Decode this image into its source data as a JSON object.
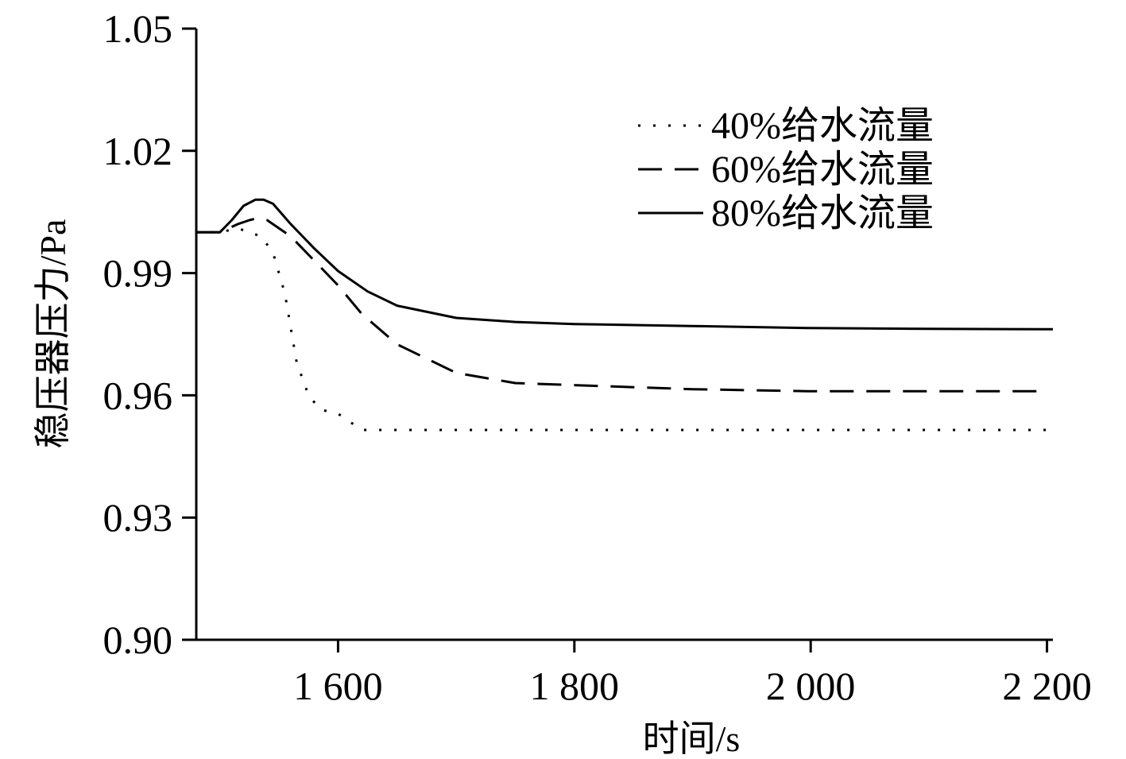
{
  "chart_data": {
    "type": "line",
    "title": "",
    "xlabel": "时间/s",
    "ylabel": "稳压器压力/Pa",
    "xlim": [
      1480,
      2205
    ],
    "ylim": [
      0.9,
      1.05
    ],
    "xticks": [
      1600,
      1800,
      2000,
      2200
    ],
    "xtick_labels": [
      "1 600",
      "1 800",
      "2 000",
      "2 200"
    ],
    "yticks": [
      0.9,
      0.93,
      0.96,
      0.99,
      1.02,
      1.05
    ],
    "ytick_labels": [
      "0.90",
      "0.93",
      "0.96",
      "0.99",
      "1.02",
      "1.05"
    ],
    "grid": false,
    "legend_position": "top-right",
    "series": [
      {
        "name": "40%给水流量",
        "style": "dotted",
        "color": "#000000",
        "x": [
          1480,
          1500,
          1515,
          1525,
          1535,
          1545,
          1555,
          1565,
          1575,
          1585,
          1600,
          1610,
          1620,
          1640,
          1700,
          1800,
          2000,
          2200
        ],
        "y": [
          1.0,
          1.0,
          1.001,
          1.0,
          0.999,
          0.995,
          0.985,
          0.968,
          0.96,
          0.9565,
          0.9555,
          0.9535,
          0.9515,
          0.9515,
          0.9515,
          0.9515,
          0.9515,
          0.9515
        ]
      },
      {
        "name": "60%给水流量",
        "style": "dashed",
        "color": "#000000",
        "x": [
          1480,
          1500,
          1515,
          1525,
          1532,
          1540,
          1560,
          1580,
          1600,
          1620,
          1650,
          1700,
          1750,
          1800,
          1900,
          2000,
          2100,
          2200
        ],
        "y": [
          1.0,
          1.0,
          1.002,
          1.003,
          1.0035,
          1.003,
          0.999,
          0.993,
          0.987,
          0.98,
          0.9725,
          0.9655,
          0.963,
          0.9625,
          0.9615,
          0.961,
          0.961,
          0.961
        ]
      },
      {
        "name": "80%给水流量",
        "style": "solid",
        "color": "#000000",
        "x": [
          1480,
          1500,
          1510,
          1520,
          1530,
          1537,
          1545,
          1560,
          1580,
          1600,
          1625,
          1650,
          1700,
          1750,
          1800,
          1900,
          2000,
          2100,
          2205
        ],
        "y": [
          1.0,
          1.0,
          1.003,
          1.0065,
          1.008,
          1.008,
          1.007,
          1.002,
          0.996,
          0.9905,
          0.9855,
          0.982,
          0.979,
          0.978,
          0.9775,
          0.977,
          0.9765,
          0.9763,
          0.9762
        ]
      }
    ]
  }
}
